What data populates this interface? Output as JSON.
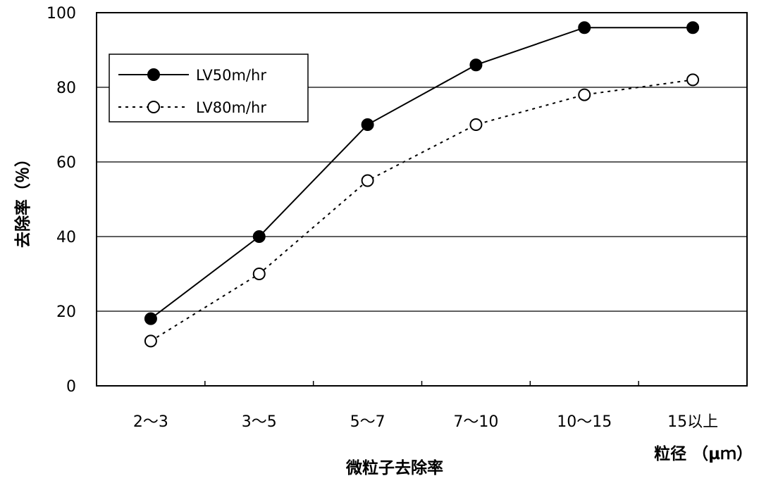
{
  "chart_data": {
    "type": "line",
    "title": "",
    "caption": "微粒子去除率",
    "xlabel": "粒径 （μｍ）",
    "ylabel": "去除率（％）",
    "categories": [
      "2～3",
      "3～5",
      "5～7",
      "7～10",
      "10～15",
      "15以上"
    ],
    "ylim": [
      0,
      100
    ],
    "yticks": [
      0,
      20,
      40,
      60,
      80,
      100
    ],
    "grid": "horizontal",
    "legend_position": "top-left",
    "series": [
      {
        "name": "LV50m/hr",
        "values": [
          18,
          40,
          70,
          86,
          96,
          96
        ],
        "style": "solid",
        "marker": "filled-circle",
        "color": "#000000"
      },
      {
        "name": "LV80m/hr",
        "values": [
          12,
          30,
          55,
          70,
          78,
          82
        ],
        "style": "dotted",
        "marker": "open-circle",
        "color": "#000000"
      }
    ]
  }
}
